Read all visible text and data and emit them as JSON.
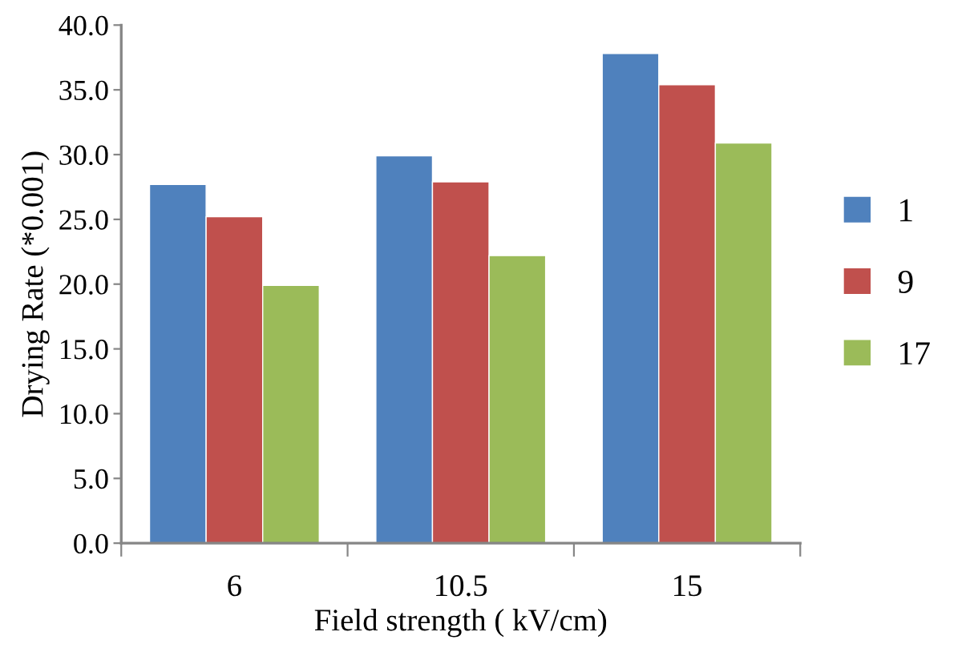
{
  "chart_data": {
    "type": "bar",
    "xlabel": "Field strength ( kV/cm)",
    "ylabel": "Drying Rate (*0.001)",
    "categories": [
      "6",
      "10.5",
      "15"
    ],
    "series": [
      {
        "name": "1",
        "color": "#4f81bd",
        "values": [
          27.7,
          29.9,
          37.8
        ]
      },
      {
        "name": "9",
        "color": "#c0504d",
        "values": [
          25.2,
          27.9,
          35.4
        ]
      },
      {
        "name": "17",
        "color": "#9bbb59",
        "values": [
          19.9,
          22.2,
          30.9
        ]
      }
    ],
    "ylim": [
      0,
      40
    ],
    "yticks": [
      {
        "value": 0,
        "label": "0.0"
      },
      {
        "value": 5,
        "label": "5.0"
      },
      {
        "value": 10,
        "label": "10.0"
      },
      {
        "value": 15,
        "label": "15.0"
      },
      {
        "value": 20,
        "label": "20.0"
      },
      {
        "value": 25,
        "label": "25.0"
      },
      {
        "value": 30,
        "label": "30.0"
      },
      {
        "value": 35,
        "label": "35.0"
      },
      {
        "value": 40,
        "label": "40.0"
      }
    ],
    "grid": false,
    "legend": "right"
  }
}
